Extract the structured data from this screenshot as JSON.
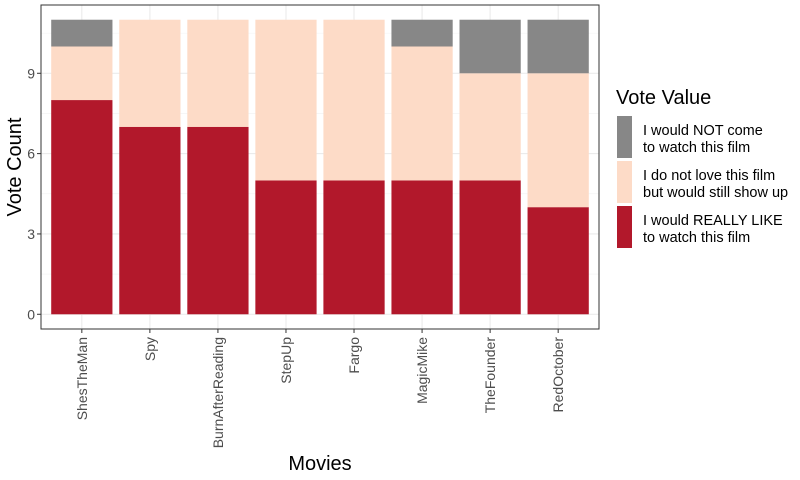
{
  "chart_data": {
    "type": "bar",
    "stacked": true,
    "xlabel": "Movies",
    "ylabel": "Vote Count",
    "categories": [
      "ShesTheMan",
      "Spy",
      "BurnAfterReading",
      "StepUp",
      "Fargo",
      "MagicMike",
      "TheFounder",
      "RedOctober"
    ],
    "series": [
      {
        "name": "I would REALLY LIKE to watch this film",
        "name_lines": [
          "I would REALLY LIKE",
          "to watch this film"
        ],
        "color": "#b2182b",
        "values": [
          8,
          7,
          7,
          5,
          5,
          5,
          5,
          4
        ]
      },
      {
        "name": "I do not love this film but would still show up",
        "name_lines": [
          "I do not love this film",
          "but would still show up"
        ],
        "color": "#fddbc7",
        "values": [
          2,
          4,
          4,
          6,
          6,
          5,
          4,
          5
        ]
      },
      {
        "name": "I would NOT come to watch this film",
        "name_lines": [
          "I would NOT come",
          "to watch this film"
        ],
        "color": "#878787",
        "values": [
          1,
          0,
          0,
          0,
          0,
          1,
          2,
          2
        ]
      }
    ],
    "yticks": [
      0,
      3,
      6,
      9
    ],
    "ylim": [
      -0.55,
      11.55
    ],
    "legend": {
      "title": "Vote Value",
      "position": "right"
    },
    "grid": true
  }
}
